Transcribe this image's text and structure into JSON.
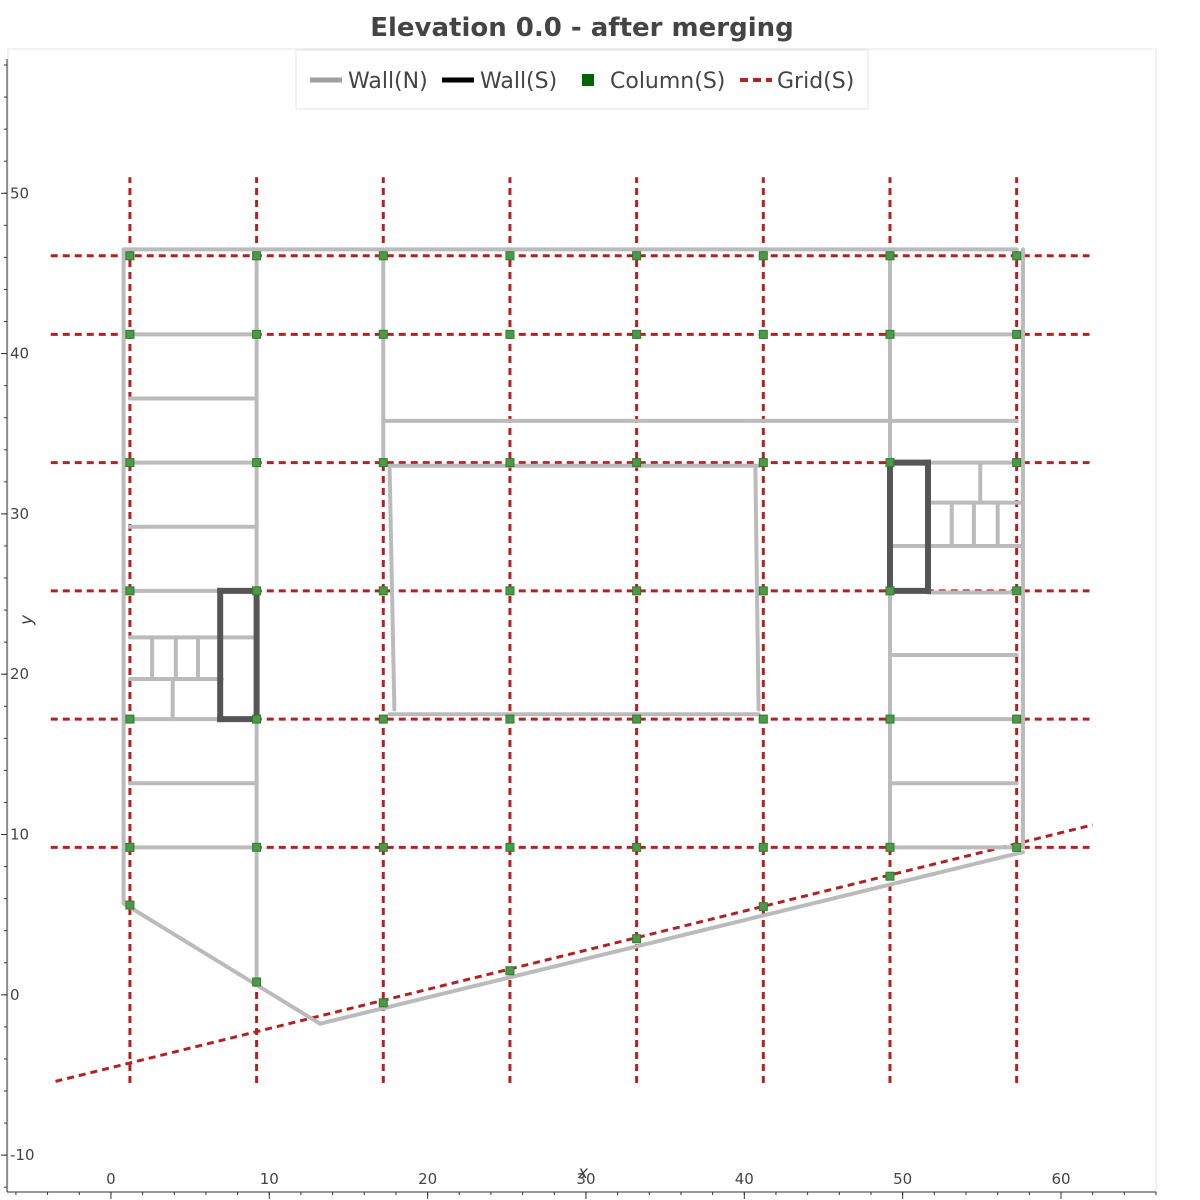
{
  "chart_data": {
    "type": "line",
    "title": "Elevation 0.0 - after merging",
    "xlabel": "x",
    "ylabel": "y",
    "xlim": [
      -6.5,
      66
    ],
    "ylim": [
      -12.3,
      59
    ],
    "x_ticks": [
      0,
      10,
      20,
      30,
      40,
      50,
      60
    ],
    "y_ticks": [
      -10,
      0,
      10,
      20,
      30,
      40,
      50
    ],
    "x_tick_labels": [
      "0",
      "10",
      "20",
      "30",
      "40",
      "50",
      "60"
    ],
    "y_tick_labels": [
      "-10",
      "0",
      "10",
      "20",
      "30",
      "40",
      "50"
    ],
    "legend": {
      "placement": "top-center",
      "entries": [
        {
          "label": "Wall(N)",
          "style": "line",
          "color": "#a0a0a0"
        },
        {
          "label": "Wall(S)",
          "style": "line",
          "color": "#000000"
        },
        {
          "label": "Column(S)",
          "style": "square",
          "color": "#006400"
        },
        {
          "label": "Grid(S)",
          "style": "dashed",
          "color": "#b22222"
        }
      ]
    },
    "colors": {
      "wall_n": "#bbbbbb",
      "wall_s": "#555555",
      "column_fill": "#4a9a4a",
      "column_stroke": "#2f7a2f",
      "grid": "#b22222",
      "axis": "#333333"
    },
    "series": [
      {
        "name": "Grid(S)",
        "segments": [
          [
            [
              1.2,
              -5.5
            ],
            [
              1.2,
              51
            ]
          ],
          [
            [
              9.2,
              -5.5
            ],
            [
              9.2,
              51
            ]
          ],
          [
            [
              17.2,
              -5.5
            ],
            [
              17.2,
              51
            ]
          ],
          [
            [
              25.2,
              -5.5
            ],
            [
              25.2,
              51
            ]
          ],
          [
            [
              33.2,
              -5.5
            ],
            [
              33.2,
              51
            ]
          ],
          [
            [
              41.2,
              -5.5
            ],
            [
              41.2,
              51
            ]
          ],
          [
            [
              49.2,
              -5.5
            ],
            [
              49.2,
              51
            ]
          ],
          [
            [
              57.2,
              -5.5
            ],
            [
              57.2,
              51
            ]
          ],
          [
            [
              -3.8,
              46.1
            ],
            [
              61.8,
              46.1
            ]
          ],
          [
            [
              -3.8,
              41.2
            ],
            [
              61.8,
              41.2
            ]
          ],
          [
            [
              -3.8,
              33.2
            ],
            [
              61.8,
              33.2
            ]
          ],
          [
            [
              -3.8,
              25.2
            ],
            [
              61.8,
              25.2
            ]
          ],
          [
            [
              -3.8,
              17.2
            ],
            [
              61.8,
              17.2
            ]
          ],
          [
            [
              -3.8,
              9.2
            ],
            [
              61.8,
              9.2
            ]
          ],
          [
            [
              -3.5,
              -5.4
            ],
            [
              62,
              10.6
            ]
          ]
        ]
      },
      {
        "name": "Wall(N)",
        "segments": [
          [
            [
              0.8,
              46.5
            ],
            [
              57.2,
              46.5
            ]
          ],
          [
            [
              0.8,
              46.5
            ],
            [
              0.8,
              5.8
            ]
          ],
          [
            [
              57.6,
              46.5
            ],
            [
              57.6,
              9.2
            ]
          ],
          [
            [
              0.8,
              5.7
            ],
            [
              13.2,
              -1.8
            ]
          ],
          [
            [
              13.2,
              -1.8
            ],
            [
              57.6,
              8.9
            ]
          ],
          [
            [
              9.2,
              46.5
            ],
            [
              9.2,
              0.8
            ]
          ],
          [
            [
              1.2,
              41.2
            ],
            [
              9.2,
              41.2
            ]
          ],
          [
            [
              1.2,
              37.2
            ],
            [
              9.2,
              37.2
            ]
          ],
          [
            [
              1.2,
              33.2
            ],
            [
              9.2,
              33.2
            ]
          ],
          [
            [
              1.2,
              29.2
            ],
            [
              9.2,
              29.2
            ]
          ],
          [
            [
              1.2,
              25.2
            ],
            [
              9.2,
              25.2
            ]
          ],
          [
            [
              1.2,
              22.3
            ],
            [
              9.2,
              22.3
            ]
          ],
          [
            [
              1.2,
              19.7
            ],
            [
              7.0,
              19.7
            ]
          ],
          [
            [
              1.2,
              17.2
            ],
            [
              9.2,
              17.2
            ]
          ],
          [
            [
              1.2,
              13.2
            ],
            [
              9.2,
              13.2
            ]
          ],
          [
            [
              1.2,
              9.2
            ],
            [
              9.2,
              9.2
            ]
          ],
          [
            [
              2.6,
              22.3
            ],
            [
              2.6,
              19.7
            ]
          ],
          [
            [
              4.1,
              22.3
            ],
            [
              4.1,
              19.7
            ]
          ],
          [
            [
              5.5,
              22.3
            ],
            [
              5.5,
              19.7
            ]
          ],
          [
            [
              3.9,
              19.7
            ],
            [
              3.9,
              17.2
            ]
          ],
          [
            [
              17.2,
              46.5
            ],
            [
              17.2,
              33.2
            ]
          ],
          [
            [
              17.2,
              35.8
            ],
            [
              57.2,
              35.8
            ]
          ],
          [
            [
              17.6,
              33.0
            ],
            [
              40.9,
              33.0
            ]
          ],
          [
            [
              17.6,
              17.5
            ],
            [
              40.9,
              17.5
            ]
          ],
          [
            [
              17.6,
              32.8
            ],
            [
              17.9,
              17.8
            ]
          ],
          [
            [
              40.7,
              32.8
            ],
            [
              40.9,
              17.8
            ]
          ],
          [
            [
              49.2,
              46.5
            ],
            [
              49.2,
              9.2
            ]
          ],
          [
            [
              49.2,
              41.2
            ],
            [
              57.2,
              41.2
            ]
          ],
          [
            [
              51.6,
              33.2
            ],
            [
              57.2,
              33.2
            ]
          ],
          [
            [
              51.6,
              30.7
            ],
            [
              57.6,
              30.7
            ]
          ],
          [
            [
              49.2,
              28.0
            ],
            [
              57.6,
              28.0
            ]
          ],
          [
            [
              51.6,
              25.1
            ],
            [
              57.6,
              25.1
            ]
          ],
          [
            [
              49.2,
              21.2
            ],
            [
              57.2,
              21.2
            ]
          ],
          [
            [
              49.2,
              17.2
            ],
            [
              57.2,
              17.2
            ]
          ],
          [
            [
              49.2,
              13.2
            ],
            [
              57.2,
              13.2
            ]
          ],
          [
            [
              49.2,
              9.2
            ],
            [
              57.2,
              9.2
            ]
          ],
          [
            [
              53.1,
              30.7
            ],
            [
              53.1,
              28.0
            ]
          ],
          [
            [
              54.5,
              30.7
            ],
            [
              54.5,
              28.0
            ]
          ],
          [
            [
              56.0,
              30.7
            ],
            [
              56.0,
              28.0
            ]
          ],
          [
            [
              54.9,
              33.2
            ],
            [
              54.9,
              30.7
            ]
          ]
        ]
      },
      {
        "name": "Wall(S)",
        "segments": [
          [
            [
              6.9,
              25.2
            ],
            [
              9.2,
              25.2
            ]
          ],
          [
            [
              9.2,
              25.2
            ],
            [
              9.2,
              17.2
            ]
          ],
          [
            [
              9.2,
              17.2
            ],
            [
              6.9,
              17.2
            ]
          ],
          [
            [
              6.9,
              17.2
            ],
            [
              6.9,
              25.2
            ]
          ],
          [
            [
              49.2,
              33.2
            ],
            [
              51.6,
              33.2
            ]
          ],
          [
            [
              51.6,
              33.2
            ],
            [
              51.6,
              25.2
            ]
          ],
          [
            [
              51.6,
              25.2
            ],
            [
              49.2,
              25.2
            ]
          ],
          [
            [
              49.2,
              25.2
            ],
            [
              49.2,
              33.2
            ]
          ]
        ]
      },
      {
        "name": "Column(S)",
        "points": [
          [
            1.2,
            46.1
          ],
          [
            9.2,
            46.1
          ],
          [
            17.2,
            46.1
          ],
          [
            25.2,
            46.1
          ],
          [
            33.2,
            46.1
          ],
          [
            41.2,
            46.1
          ],
          [
            49.2,
            46.1
          ],
          [
            57.2,
            46.1
          ],
          [
            1.2,
            41.2
          ],
          [
            9.2,
            41.2
          ],
          [
            17.2,
            41.2
          ],
          [
            25.2,
            41.2
          ],
          [
            33.2,
            41.2
          ],
          [
            41.2,
            41.2
          ],
          [
            49.2,
            41.2
          ],
          [
            57.2,
            41.2
          ],
          [
            1.2,
            33.2
          ],
          [
            9.2,
            33.2
          ],
          [
            17.2,
            33.2
          ],
          [
            25.2,
            33.2
          ],
          [
            33.2,
            33.2
          ],
          [
            41.2,
            33.2
          ],
          [
            49.2,
            33.2
          ],
          [
            57.2,
            33.2
          ],
          [
            1.2,
            25.2
          ],
          [
            9.2,
            25.2
          ],
          [
            17.2,
            25.2
          ],
          [
            25.2,
            25.2
          ],
          [
            33.2,
            25.2
          ],
          [
            41.2,
            25.2
          ],
          [
            49.2,
            25.2
          ],
          [
            57.2,
            25.2
          ],
          [
            1.2,
            17.2
          ],
          [
            9.2,
            17.2
          ],
          [
            17.2,
            17.2
          ],
          [
            25.2,
            17.2
          ],
          [
            33.2,
            17.2
          ],
          [
            41.2,
            17.2
          ],
          [
            49.2,
            17.2
          ],
          [
            57.2,
            17.2
          ],
          [
            1.2,
            9.2
          ],
          [
            9.2,
            9.2
          ],
          [
            17.2,
            9.2
          ],
          [
            25.2,
            9.2
          ],
          [
            33.2,
            9.2
          ],
          [
            41.2,
            9.2
          ],
          [
            49.2,
            9.2
          ],
          [
            57.2,
            9.2
          ],
          [
            1.2,
            5.6
          ],
          [
            9.2,
            0.8
          ],
          [
            17.2,
            -0.5
          ],
          [
            25.2,
            1.5
          ],
          [
            33.2,
            3.5
          ],
          [
            41.2,
            5.5
          ],
          [
            49.2,
            7.4
          ]
        ]
      }
    ]
  }
}
